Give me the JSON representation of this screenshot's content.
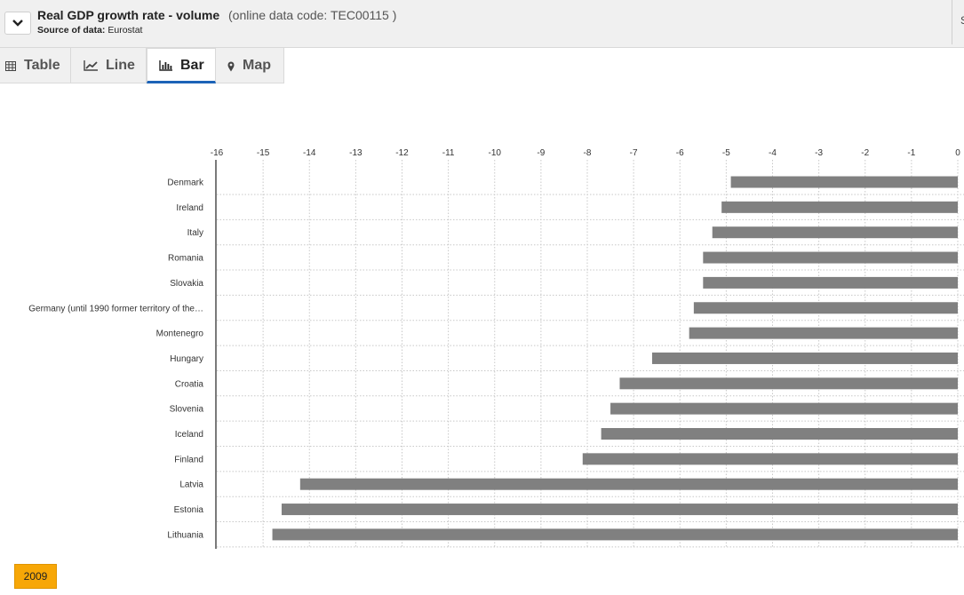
{
  "header": {
    "title": "Real GDP growth rate - volume",
    "code": "(online data code: TEC00115 )",
    "source_label": "Source of data:",
    "source_value": "Eurostat",
    "right_glyph": "S"
  },
  "tabs": [
    {
      "label": "Table",
      "icon": "table-icon",
      "active": false
    },
    {
      "label": "Line",
      "icon": "line-chart-icon",
      "active": false
    },
    {
      "label": "Bar",
      "icon": "bar-chart-icon",
      "active": true
    },
    {
      "label": "Map",
      "icon": "map-marker-icon",
      "active": false
    }
  ],
  "colors": {
    "bar": "#808080",
    "grid": "#c8c8c8",
    "accent": "#1c63b7",
    "year_badge": "#f7a707"
  },
  "chart_data": {
    "type": "bar",
    "orientation": "horizontal",
    "categories": [
      "Denmark",
      "Ireland",
      "Italy",
      "Romania",
      "Slovakia",
      "Germany (until 1990 former territory of the…",
      "Montenegro",
      "Hungary",
      "Croatia",
      "Slovenia",
      "Iceland",
      "Finland",
      "Latvia",
      "Estonia",
      "Lithuania"
    ],
    "values": [
      -4.9,
      -5.1,
      -5.3,
      -5.5,
      -5.5,
      -5.7,
      -5.8,
      -6.6,
      -7.3,
      -7.5,
      -7.7,
      -8.1,
      -14.2,
      -14.6,
      -14.8
    ],
    "xlim": [
      -16,
      0
    ],
    "ticks": [
      "-16",
      "-15",
      "-14",
      "-13",
      "-12",
      "-11",
      "-10",
      "-9",
      "-8",
      "-7",
      "-6",
      "-5",
      "-4",
      "-3",
      "-2",
      "-1",
      "0"
    ],
    "grid": true,
    "xlabel": "",
    "ylabel": ""
  },
  "year": "2009"
}
